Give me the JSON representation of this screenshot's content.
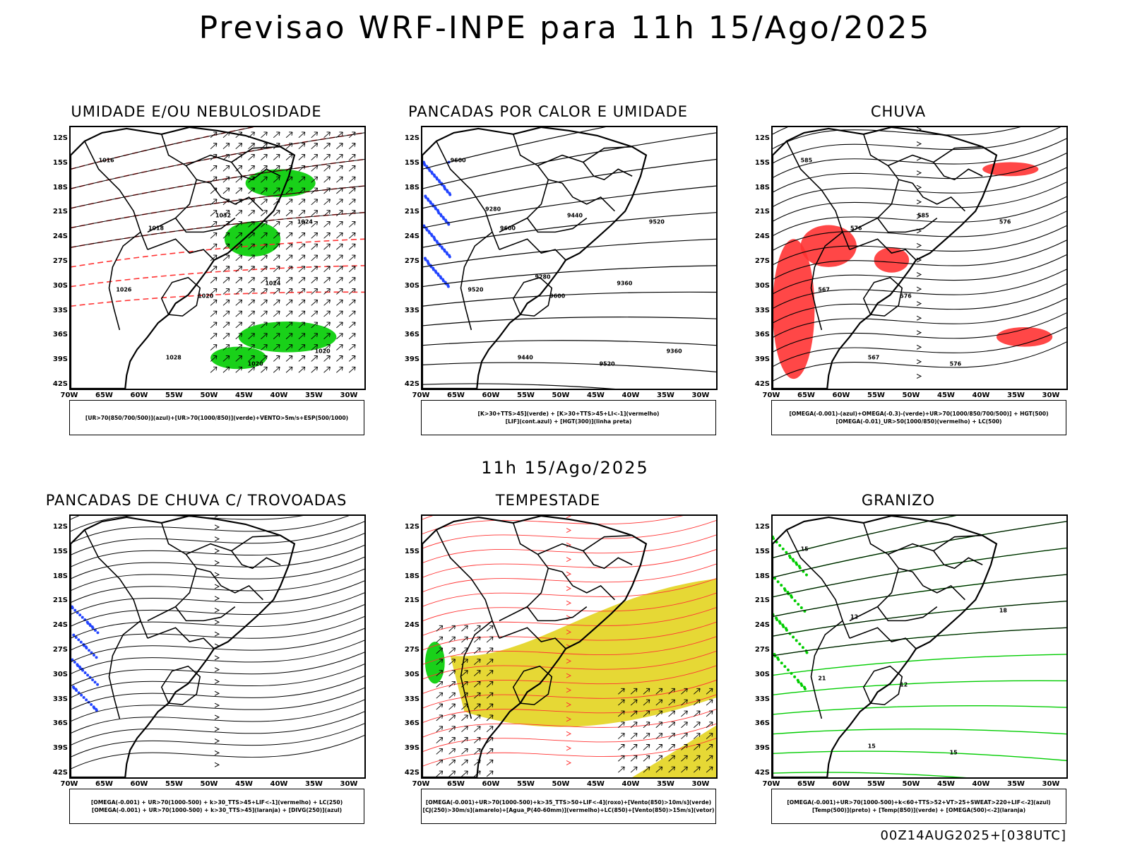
{
  "title": "Previsao WRF-INPE  para 11h 15/Ago/2025",
  "subtitle": "11h 15/Ago/2025",
  "footer": "00Z14AUG2025+[038UTC]",
  "axes": {
    "lat_labels": [
      "12S",
      "15S",
      "18S",
      "21S",
      "24S",
      "27S",
      "30S",
      "33S",
      "36S",
      "39S",
      "42S"
    ],
    "lon_labels": [
      "70W",
      "65W",
      "60W",
      "55W",
      "50W",
      "45W",
      "40W",
      "35W",
      "30W"
    ]
  },
  "colors": {
    "green": "#00cc00",
    "red": "#ff3333",
    "blue": "#2244ff",
    "yellow": "#e6d835",
    "black": "#000000"
  },
  "panels": [
    {
      "title": "UMIDADE E/OU NEBULOSIDADE",
      "legend": [
        "[UR>70(850/700/500)](azul)+[UR>70(1000/850)](verde)+VENTO>5m/s+ESP(500/1000)"
      ],
      "contour_labels": [
        "1016",
        "1018",
        "1020",
        "1020",
        "1024",
        "1026",
        "1028",
        "1032",
        "1024",
        "1020"
      ]
    },
    {
      "title": "PANCADAS POR CALOR E UMIDADE",
      "legend": [
        "[K>30+TTS>45](verde) + [K>30+TTS>45+LI<-1](vermelho)",
        "[LIF](cont.azul) + [HGT(300)](linha preta)"
      ],
      "contour_labels": [
        "9600",
        "9600",
        "9600",
        "9520",
        "9520",
        "9520",
        "9440",
        "9440",
        "9360",
        "9360",
        "9280",
        "9280"
      ]
    },
    {
      "title": "CHUVA",
      "legend": [
        "[OMEGA(-0.001)-(azul)+OMEGA(-0.3)-(verde)+UR>70(1000/850/700/500)] + HGT(500)",
        "[OMEGA(-0.01)_UR>50(1000/850)(vermelho) + LC(500)"
      ],
      "contour_labels": [
        "585",
        "576",
        "576",
        "576",
        "576",
        "567",
        "567",
        "585"
      ]
    },
    {
      "title": "PANCADAS DE CHUVA C/ TROVOADAS",
      "legend": [
        "[OMEGA(-0.001) + UR>70(1000-500) + k>30_TTS>45+LIF<-1](vermelho) + LC(250)",
        "[OMEGA(-0.001) + UR>70(1000-500) + k>30_TTS>45](laranja) + [DIVG(250)](azul)"
      ],
      "contour_labels": []
    },
    {
      "title": "TEMPESTADE",
      "legend": [
        "[OMEGA(-0.001)+UR>70(1000-500)+k>35_TTS>50+LIF<-4](roxo)+[Vento(850)>10m/s](verde)",
        "[CJ(250)>30m/s](amarelo)+[Agua_P(40-60mm)](vermelho)+LC(850)+[Vento(850)>15m/s](vetor)"
      ],
      "contour_labels": []
    },
    {
      "title": "GRANIZO",
      "legend": [
        "[OMEGA(-0.001)+UR>70(1000-500)+k<60+TTS>52+VT>25+SWEAT>220+LIF<-2](azul)",
        "[Temp(500)](preto) + [Temp(850)](verde) + [OMEGA(500)<-2](laranja)"
      ],
      "contour_labels": [
        "15",
        "12",
        "12",
        "15",
        "18",
        "21",
        "15"
      ]
    }
  ]
}
